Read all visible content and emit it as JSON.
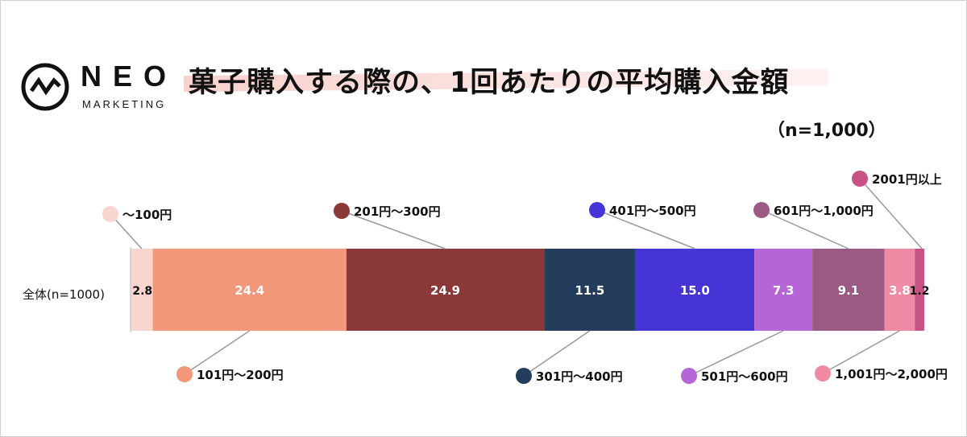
{
  "logo": {
    "name": "NEO",
    "sub": "MARKETING"
  },
  "title": "菓子購入する際の、1回あたりの平均購入金額",
  "subtitle": "（n=1,000）",
  "chart_data": {
    "type": "bar",
    "orientation": "horizontal-stacked",
    "categories": [
      "全体(n=1000)"
    ],
    "series": [
      {
        "name": "～100円",
        "values": [
          2.8
        ],
        "color": "#f9d5d0",
        "label_color": "#111111",
        "legend_pos": "top"
      },
      {
        "name": "101円～200円",
        "values": [
          24.4
        ],
        "color": "#f2977a",
        "label_color": "#ffffff",
        "legend_pos": "bottom"
      },
      {
        "name": "201円～300円",
        "values": [
          24.9
        ],
        "color": "#8b3839",
        "label_color": "#ffffff",
        "legend_pos": "top"
      },
      {
        "name": "301円～400円",
        "values": [
          11.5
        ],
        "color": "#243d5c",
        "label_color": "#ffffff",
        "legend_pos": "bottom"
      },
      {
        "name": "401円～500円",
        "values": [
          15.0
        ],
        "color": "#4535d6",
        "label_color": "#ffffff",
        "legend_pos": "top"
      },
      {
        "name": "501円～600円",
        "values": [
          7.3
        ],
        "color": "#b565d6",
        "label_color": "#ffffff",
        "legend_pos": "bottom"
      },
      {
        "name": "601円～1,000円",
        "values": [
          9.1
        ],
        "color": "#9b5a84",
        "label_color": "#ffffff",
        "legend_pos": "top"
      },
      {
        "name": "1,001円～2,000円",
        "values": [
          3.8
        ],
        "color": "#ee8aa4",
        "label_color": "#ffffff",
        "legend_pos": "bottom"
      },
      {
        "name": "2001円以上",
        "values": [
          1.2
        ],
        "color": "#c85283",
        "label_color": "#111111",
        "legend_pos": "top"
      }
    ],
    "xlim": [
      0,
      100
    ],
    "grid": false,
    "legend": "callouts above and below bar"
  }
}
